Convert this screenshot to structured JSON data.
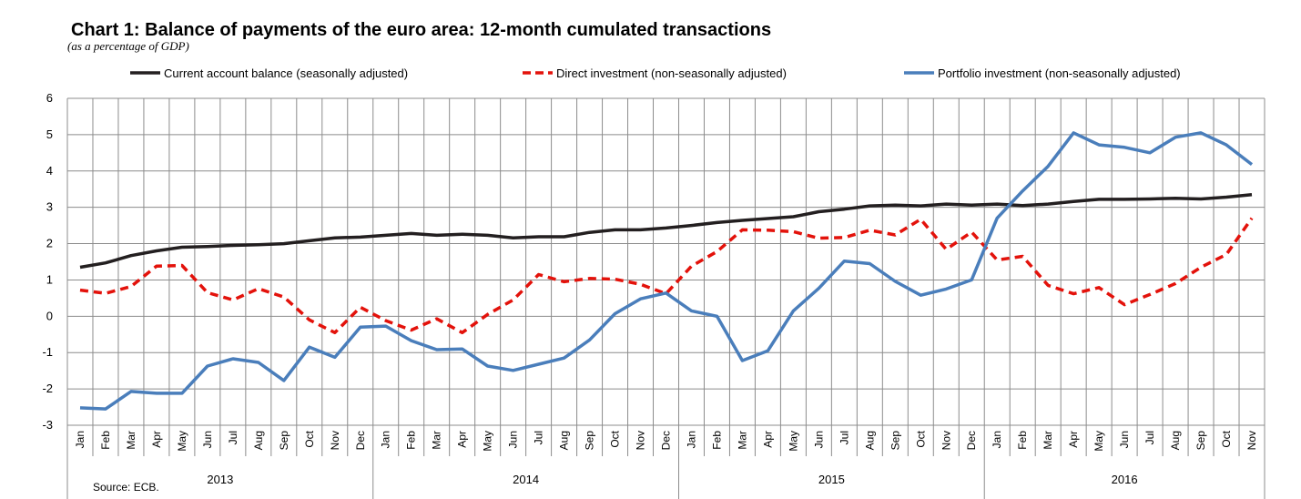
{
  "chart_data": {
    "type": "line",
    "title": "Chart 1: Balance of payments of the euro area: 12-month cumulated transactions",
    "subtitle": "(as a percentage of GDP)",
    "source": "Source: ECB.",
    "ylim": [
      -3,
      6
    ],
    "yticks": [
      "6",
      "5",
      "4",
      "3",
      "2",
      "1",
      "0",
      "-1",
      "-2",
      "-3"
    ],
    "grid": true,
    "legend_position": "top",
    "months": [
      "Jan",
      "Feb",
      "Mar",
      "Apr",
      "May",
      "Jun",
      "Jul",
      "Aug",
      "Sep",
      "Oct",
      "Nov",
      "Dec",
      "Jan",
      "Feb",
      "Mar",
      "Apr",
      "May",
      "Jun",
      "Jul",
      "Aug",
      "Sep",
      "Oct",
      "Nov",
      "Dec",
      "Jan",
      "Feb",
      "Mar",
      "Apr",
      "May",
      "Jun",
      "Jul",
      "Aug",
      "Sep",
      "Oct",
      "Nov",
      "Dec",
      "Jan",
      "Feb",
      "Mar",
      "Apr",
      "May",
      "Jun",
      "Jul",
      "Aug",
      "Sep",
      "Oct",
      "Nov"
    ],
    "years": [
      {
        "label": "2013",
        "months": 12
      },
      {
        "label": "2014",
        "months": 12
      },
      {
        "label": "2015",
        "months": 12
      },
      {
        "label": "2016",
        "months": 11
      }
    ],
    "series": [
      {
        "name": "Current account balance (seasonally adjusted)",
        "color": "#231f20",
        "style": "solid",
        "values": [
          1.35,
          1.47,
          1.67,
          1.8,
          1.9,
          1.92,
          1.95,
          1.97,
          2.0,
          2.08,
          2.16,
          2.18,
          2.23,
          2.28,
          2.23,
          2.26,
          2.23,
          2.16,
          2.19,
          2.19,
          2.31,
          2.38,
          2.38,
          2.43,
          2.5,
          2.58,
          2.64,
          2.69,
          2.74,
          2.88,
          2.95,
          3.04,
          3.06,
          3.04,
          3.09,
          3.06,
          3.09,
          3.05,
          3.09,
          3.16,
          3.22,
          3.22,
          3.23,
          3.25,
          3.23,
          3.28,
          3.35
        ]
      },
      {
        "name": "Direct investment (non-seasonally adjusted)",
        "color": "#e3120b",
        "style": "dashed",
        "values": [
          0.72,
          0.63,
          0.82,
          1.38,
          1.4,
          0.65,
          0.45,
          0.76,
          0.53,
          -0.1,
          -0.45,
          0.25,
          -0.12,
          -0.38,
          -0.07,
          -0.45,
          0.05,
          0.45,
          1.15,
          0.95,
          1.04,
          1.02,
          0.88,
          0.62,
          1.38,
          1.78,
          2.38,
          2.37,
          2.33,
          2.15,
          2.17,
          2.37,
          2.24,
          2.67,
          1.84,
          2.32,
          1.55,
          1.65,
          0.85,
          0.62,
          0.79,
          0.32,
          0.6,
          0.9,
          1.35,
          1.7,
          2.7
        ]
      },
      {
        "name": "Portfolio investment (non-seasonally adjusted)",
        "color": "#4a7ebb",
        "style": "solid",
        "values": [
          -2.52,
          -2.55,
          -2.07,
          -2.12,
          -2.12,
          -1.37,
          -1.17,
          -1.27,
          -1.77,
          -0.85,
          -1.13,
          -0.3,
          -0.27,
          -0.67,
          -0.92,
          -0.9,
          -1.37,
          -1.49,
          -1.32,
          -1.15,
          -0.65,
          0.07,
          0.48,
          0.64,
          0.15,
          0.0,
          -1.22,
          -0.95,
          0.15,
          0.77,
          1.52,
          1.45,
          0.96,
          0.58,
          0.75,
          1.0,
          2.7,
          3.45,
          4.13,
          5.05,
          4.72,
          4.65,
          4.5,
          4.93,
          5.05,
          4.72,
          4.18
        ]
      }
    ]
  }
}
